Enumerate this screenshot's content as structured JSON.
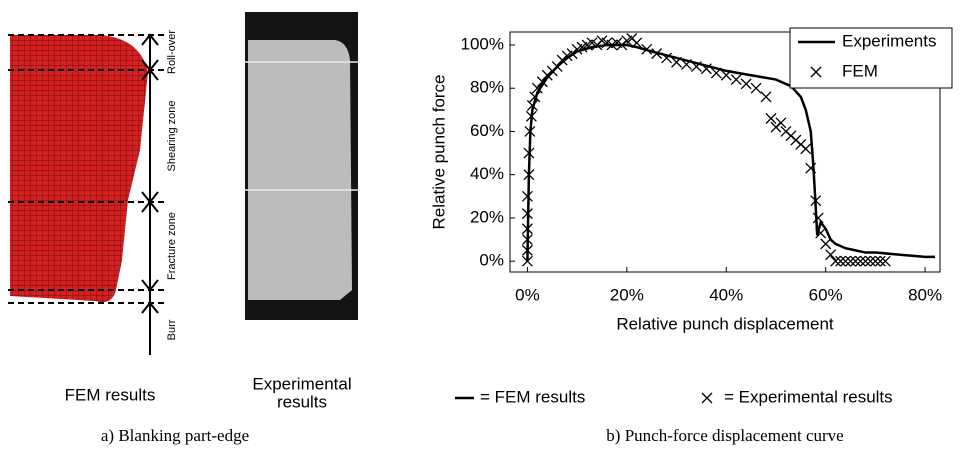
{
  "panel_a": {
    "zone_labels": [
      "Roll-over",
      "Shearing zone",
      "Fracture zone",
      "Burr"
    ],
    "fem_label": "FEM results",
    "exp_label": [
      "Experimental",
      "results"
    ],
    "caption": "a) Blanking part-edge"
  },
  "chart_data": {
    "type": "line_scatter",
    "x_label": "Relative punch displacement",
    "y_label": "Relative punch force",
    "caption": "b) Punch-force displacement curve",
    "key": [
      "= FEM results",
      "= Experimental results"
    ],
    "xlim": [
      -3.5,
      83
    ],
    "ylim": [
      -5,
      106
    ],
    "xticks": [
      {
        "value": 0,
        "label": "0%"
      },
      {
        "value": 20,
        "label": "20%"
      },
      {
        "value": 40,
        "label": "40%"
      },
      {
        "value": 60,
        "label": "60%"
      },
      {
        "value": 80,
        "label": "80%"
      }
    ],
    "yticks": [
      {
        "value": 0,
        "label": "0%"
      },
      {
        "value": 20,
        "label": "20%"
      },
      {
        "value": 40,
        "label": "40%"
      },
      {
        "value": 60,
        "label": "60%"
      },
      {
        "value": 80,
        "label": "80%"
      },
      {
        "value": 100,
        "label": "100%"
      }
    ],
    "legend": "top-right",
    "series": [
      {
        "name": "Experiments",
        "color": "#000000",
        "style": "line",
        "x": [
          0,
          0.3,
          0.6,
          1,
          2,
          4,
          6,
          8,
          10,
          13,
          16,
          20,
          22,
          25,
          30,
          35,
          40,
          45,
          50,
          53,
          55,
          56,
          57,
          57.5,
          58,
          58.3,
          59,
          60,
          61,
          62,
          64,
          66,
          68,
          70,
          75,
          80,
          82
        ],
        "values": [
          0,
          40,
          60,
          70,
          78,
          85,
          90,
          94,
          97,
          99,
          100,
          100,
          99,
          97,
          94,
          91,
          88,
          86,
          84,
          81,
          76,
          70,
          60,
          45,
          25,
          12,
          18,
          15,
          10,
          8,
          6,
          5,
          4,
          4,
          3,
          2,
          2
        ]
      },
      {
        "name": "FEM",
        "color": "#000000",
        "style": "marker",
        "x": [
          0,
          0,
          0,
          0,
          0,
          0,
          0.3,
          0.3,
          0.5,
          0.8,
          1,
          1.5,
          2,
          3,
          4,
          5,
          6,
          7,
          8,
          9,
          10,
          11,
          12,
          13,
          14,
          15,
          16,
          17,
          18,
          19,
          20,
          21,
          22,
          24,
          26,
          28,
          30,
          32,
          34,
          36,
          38,
          40,
          42,
          44,
          46,
          48,
          49,
          50,
          51,
          52,
          53,
          54,
          55,
          56,
          57,
          58,
          58.5,
          59,
          60,
          61,
          62,
          63,
          64,
          65,
          66,
          67,
          68,
          69,
          70,
          71,
          72
        ],
        "values": [
          0,
          5,
          10,
          15,
          22,
          30,
          40,
          50,
          60,
          67,
          72,
          76,
          80,
          83,
          86,
          88,
          90,
          93,
          95,
          96,
          98,
          99,
          100,
          101,
          100,
          102,
          101,
          100,
          101,
          100,
          102,
          103,
          101,
          98,
          96,
          94,
          92,
          91,
          90,
          89,
          87,
          86,
          84,
          82,
          80,
          76,
          66,
          62,
          64,
          60,
          58,
          56,
          54,
          52,
          43,
          28,
          20,
          13,
          8,
          3,
          0,
          0,
          0,
          0,
          0,
          0,
          0,
          0,
          0,
          0,
          0
        ]
      }
    ]
  }
}
